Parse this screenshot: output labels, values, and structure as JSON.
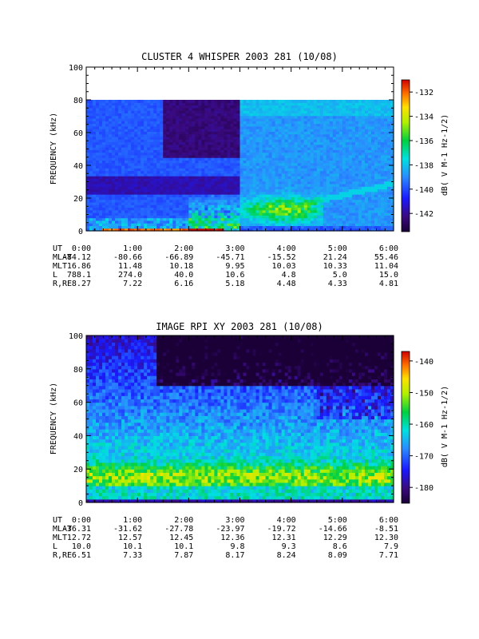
{
  "chart_data": [
    {
      "type": "heatmap",
      "title": "CLUSTER 4 WHISPER 2003 281 (10/08)",
      "ylabel": "FREQUENCY (kHz)",
      "ylim": [
        0,
        100
      ],
      "y_ticks": [
        "0",
        "20",
        "40",
        "60",
        "80",
        "100"
      ],
      "x_ticks": [
        "0:00",
        "1:00",
        "2:00",
        "3:00",
        "4:00",
        "5:00",
        "6:00"
      ],
      "data_max_freq_khz": 80,
      "colorbar": {
        "label": "dB( V M-1 Hz-1/2)",
        "range": [
          -143.5,
          -131.0
        ],
        "ticks": [
          "-132",
          "-134",
          "-136",
          "-138",
          "-140",
          "-142"
        ]
      },
      "ephemeris": [
        {
          "label": "UT",
          "values": [
            "0:00",
            "1:00",
            "2:00",
            "3:00",
            "4:00",
            "5:00",
            "6:00"
          ]
        },
        {
          "label": "MLAT",
          "values": [
            "-84.12",
            "-80.66",
            "-66.89",
            "-45.71",
            "-15.52",
            "21.24",
            "55.46"
          ]
        },
        {
          "label": "MLT",
          "values": [
            "16.86",
            "11.48",
            "10.18",
            "9.95",
            "10.03",
            "10.33",
            "11.04"
          ]
        },
        {
          "label": "L",
          "values": [
            "788.1",
            "274.0",
            "40.0",
            "10.6",
            "4.8",
            "5.0",
            "15.0"
          ]
        },
        {
          "label": "R,RE",
          "values": [
            "8.27",
            "7.22",
            "6.16",
            "5.18",
            "4.48",
            "4.33",
            "4.81"
          ]
        }
      ],
      "colors": {
        "low": "#30005a",
        "high": "#d00000"
      }
    },
    {
      "type": "heatmap",
      "title": "IMAGE RPI XY 2003 281 (10/08)",
      "ylabel": "FREQUENCY (kHz)",
      "ylim": [
        0,
        100
      ],
      "y_ticks": [
        "0",
        "20",
        "40",
        "60",
        "80",
        "100"
      ],
      "x_ticks": [
        "0:00",
        "1:00",
        "2:00",
        "3:00",
        "4:00",
        "5:00",
        "6:00"
      ],
      "data_max_freq_khz": 100,
      "colorbar": {
        "label": "dB( V M-1 Hz-1/2)",
        "range": [
          -185,
          -137
        ],
        "ticks": [
          "-140",
          "-150",
          "-160",
          "-170",
          "-180"
        ]
      },
      "ephemeris": [
        {
          "label": "UT",
          "values": [
            "0:00",
            "1:00",
            "2:00",
            "3:00",
            "4:00",
            "5:00",
            "6:00"
          ]
        },
        {
          "label": "MLAT",
          "values": [
            "-36.31",
            "-31.62",
            "-27.78",
            "-23.97",
            "-19.72",
            "-14.66",
            "-8.51"
          ]
        },
        {
          "label": "MLT",
          "values": [
            "12.72",
            "12.57",
            "12.45",
            "12.36",
            "12.31",
            "12.29",
            "12.30"
          ]
        },
        {
          "label": "L",
          "values": [
            "10.0",
            "10.1",
            "10.1",
            "9.8",
            "9.3",
            "8.6",
            "7.9"
          ]
        },
        {
          "label": "R,RE",
          "values": [
            "6.51",
            "7.33",
            "7.87",
            "8.17",
            "8.24",
            "8.09",
            "7.71"
          ]
        }
      ],
      "colors": {
        "low": "#30005a",
        "high": "#d00000"
      }
    }
  ]
}
